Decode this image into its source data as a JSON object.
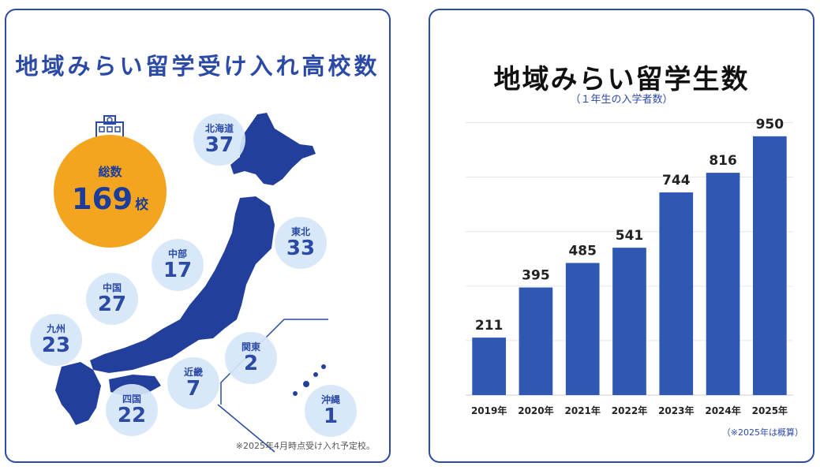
{
  "map_panel": {
    "title": "地域みらい留学受け入れ高校数",
    "total": {
      "label": "総数",
      "value": "169",
      "unit": "校"
    },
    "regions": [
      {
        "name": "北海道",
        "count": "37"
      },
      {
        "name": "東北",
        "count": "33"
      },
      {
        "name": "中部",
        "count": "17"
      },
      {
        "name": "中国",
        "count": "27"
      },
      {
        "name": "九州",
        "count": "23"
      },
      {
        "name": "関東",
        "count": "2"
      },
      {
        "name": "近畿",
        "count": "7"
      },
      {
        "name": "四国",
        "count": "22"
      },
      {
        "name": "沖縄",
        "count": "1"
      }
    ],
    "footnote": "※2025年4月時点受け入れ予定校。"
  },
  "chart_panel": {
    "footnote": "（※2025年は概算）"
  },
  "colors": {
    "brand_blue": "#2b4aa6",
    "bar": "#2f58b3",
    "accent_orange": "#f3a51f",
    "bubble": "#d6e6f7"
  },
  "chart_data": {
    "type": "bar",
    "title": "地域みらい留学生数",
    "subtitle": "（１年生の入学者数）",
    "categories": [
      "2019年",
      "2020年",
      "2021年",
      "2022年",
      "2023年",
      "2024年",
      "2025年"
    ],
    "values": [
      211,
      395,
      485,
      541,
      744,
      816,
      950
    ],
    "xlabel": "",
    "ylabel": "",
    "ylim": [
      0,
      1100
    ],
    "grid": true,
    "data_labels": true
  }
}
